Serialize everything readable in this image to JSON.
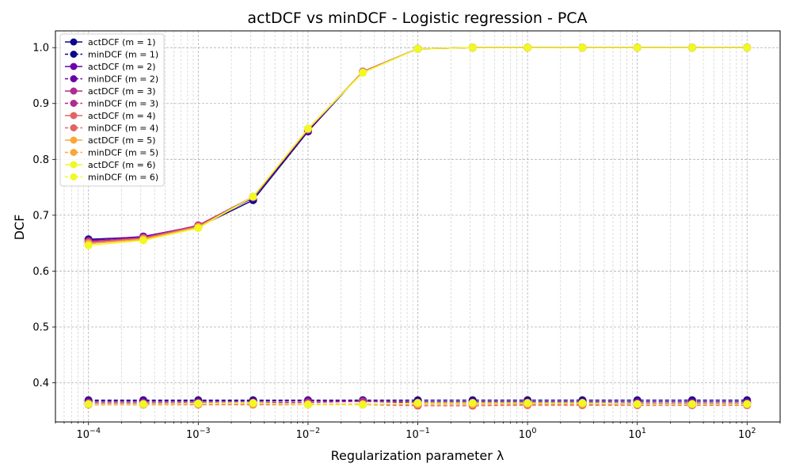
{
  "chart_data": {
    "type": "line",
    "title": "actDCF vs minDCF - Logistic regression - PCA",
    "xlabel": "Regularization parameter λ",
    "ylabel": "DCF",
    "xscale": "log",
    "xlim": [
      5e-05,
      200
    ],
    "ylim": [
      0.33,
      1.03
    ],
    "grid": true,
    "legend_position": "top-left",
    "x": [
      0.0001,
      0.000316,
      0.001,
      0.00316,
      0.01,
      0.0316,
      0.1,
      0.316,
      1,
      3.16,
      10,
      31.6,
      100
    ],
    "x_ticks": [
      {
        "value": 0.0001,
        "base": "10",
        "exp": "−4"
      },
      {
        "value": 0.001,
        "base": "10",
        "exp": "−3"
      },
      {
        "value": 0.01,
        "base": "10",
        "exp": "−2"
      },
      {
        "value": 0.1,
        "base": "10",
        "exp": "−1"
      },
      {
        "value": 1,
        "base": "10",
        "exp": "0"
      },
      {
        "value": 10,
        "base": "10",
        "exp": "1"
      },
      {
        "value": 100,
        "base": "10",
        "exp": "2"
      }
    ],
    "y_ticks": [
      0.4,
      0.5,
      0.6,
      0.7,
      0.8,
      0.9,
      1.0
    ],
    "y_tick_labels": [
      "0.4",
      "0.5",
      "0.6",
      "0.7",
      "0.8",
      "0.9",
      "1.0"
    ],
    "series": [
      {
        "name": "actDCF (m = 1)",
        "color": "#0d0887",
        "dash": false,
        "values": [
          0.657,
          0.661,
          0.679,
          0.727,
          0.85,
          0.957,
          0.998,
          1.0,
          1.0,
          1.0,
          1.0,
          1.0,
          1.0
        ]
      },
      {
        "name": "minDCF (m = 1)",
        "color": "#0d0887",
        "dash": true,
        "values": [
          0.369,
          0.369,
          0.369,
          0.369,
          0.369,
          0.369,
          0.369,
          0.369,
          0.369,
          0.369,
          0.369,
          0.369,
          0.369
        ]
      },
      {
        "name": "actDCF (m = 2)",
        "color": "#6a00a8",
        "dash": false,
        "values": [
          0.655,
          0.662,
          0.681,
          0.731,
          0.852,
          0.957,
          0.998,
          1.0,
          1.0,
          1.0,
          1.0,
          1.0,
          1.0
        ]
      },
      {
        "name": "minDCF (m = 2)",
        "color": "#6a00a8",
        "dash": true,
        "values": [
          0.367,
          0.367,
          0.367,
          0.367,
          0.368,
          0.367,
          0.366,
          0.366,
          0.366,
          0.366,
          0.366,
          0.366,
          0.366
        ]
      },
      {
        "name": "actDCF (m = 3)",
        "color": "#b12a90",
        "dash": false,
        "values": [
          0.653,
          0.66,
          0.682,
          0.733,
          0.853,
          0.957,
          0.998,
          1.0,
          1.0,
          1.0,
          1.0,
          1.0,
          1.0
        ]
      },
      {
        "name": "minDCF (m = 3)",
        "color": "#b12a90",
        "dash": true,
        "values": [
          0.364,
          0.364,
          0.364,
          0.364,
          0.365,
          0.367,
          0.364,
          0.363,
          0.363,
          0.363,
          0.363,
          0.363,
          0.363
        ]
      },
      {
        "name": "actDCF (m = 4)",
        "color": "#e16462",
        "dash": false,
        "values": [
          0.651,
          0.659,
          0.68,
          0.733,
          0.854,
          0.957,
          0.998,
          1.0,
          1.0,
          1.0,
          1.0,
          1.0,
          1.0
        ]
      },
      {
        "name": "minDCF (m = 4)",
        "color": "#e16462",
        "dash": true,
        "values": [
          0.361,
          0.361,
          0.361,
          0.361,
          0.361,
          0.361,
          0.359,
          0.359,
          0.36,
          0.36,
          0.36,
          0.36,
          0.36
        ]
      },
      {
        "name": "actDCF (m = 5)",
        "color": "#fca636",
        "dash": false,
        "values": [
          0.649,
          0.657,
          0.679,
          0.733,
          0.855,
          0.956,
          0.998,
          1.0,
          1.0,
          1.0,
          1.0,
          1.0,
          1.0
        ]
      },
      {
        "name": "minDCF (m = 5)",
        "color": "#fca636",
        "dash": true,
        "values": [
          0.362,
          0.362,
          0.362,
          0.362,
          0.362,
          0.362,
          0.362,
          0.362,
          0.362,
          0.362,
          0.362,
          0.362,
          0.362
        ]
      },
      {
        "name": "actDCF (m = 6)",
        "color": "#f0f921",
        "dash": false,
        "values": [
          0.646,
          0.655,
          0.677,
          0.733,
          0.855,
          0.955,
          0.998,
          1.0,
          1.0,
          1.0,
          1.0,
          1.0,
          1.0
        ]
      },
      {
        "name": "minDCF (m = 6)",
        "color": "#f0f921",
        "dash": true,
        "values": [
          0.362,
          0.362,
          0.363,
          0.364,
          0.361,
          0.361,
          0.364,
          0.364,
          0.364,
          0.364,
          0.362,
          0.362,
          0.362
        ]
      }
    ]
  }
}
